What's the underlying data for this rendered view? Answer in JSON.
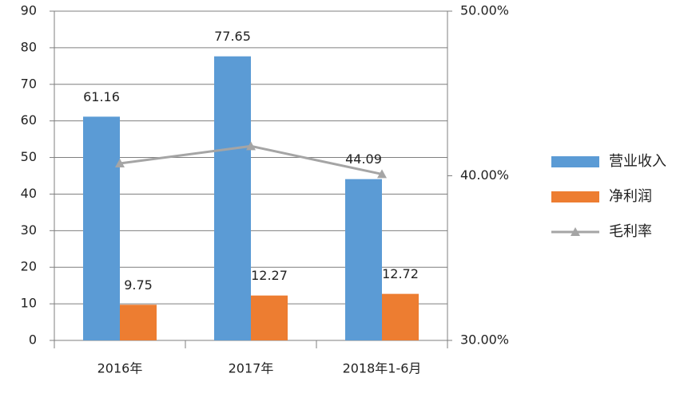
{
  "chart_data": {
    "type": "bar",
    "categories": [
      "2016年",
      "2017年",
      "2018年1-6月"
    ],
    "series": [
      {
        "name": "营业收入",
        "color": "#5b9bd5",
        "values": [
          61.16,
          77.65,
          44.09
        ]
      },
      {
        "name": "净利润",
        "color": "#ed7d31",
        "values": [
          9.75,
          12.27,
          12.72
        ]
      },
      {
        "name": "毛利率",
        "color": "#a5a5a5",
        "type": "line",
        "axis": "y2",
        "values": [
          40.75,
          41.8,
          40.1
        ]
      }
    ],
    "ylim": [
      0,
      90
    ],
    "yticks": [
      0,
      10,
      20,
      30,
      40,
      50,
      60,
      70,
      80,
      90
    ],
    "y2lim": [
      30,
      50
    ],
    "y2ticks": [
      {
        "value": 30,
        "label": "30.00%"
      },
      {
        "value": 40,
        "label": "40.00%"
      },
      {
        "value": 50,
        "label": "50.00%"
      }
    ],
    "grid": true,
    "legend": "right"
  }
}
